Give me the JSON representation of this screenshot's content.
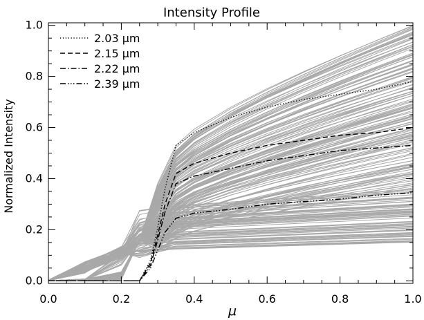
{
  "chart_data": {
    "type": "line",
    "title": "Intensity Profile",
    "xlabel": "μ",
    "ylabel": "Normalized Intensity",
    "xlim": [
      0.0,
      1.0
    ],
    "ylim": [
      -0.01,
      1.01
    ],
    "x_ticks": [
      "0.0",
      "0.2",
      "0.4",
      "0.6",
      "0.8",
      "1.0"
    ],
    "y_ticks": [
      "0.0",
      "0.2",
      "0.4",
      "0.6",
      "0.8",
      "1.0"
    ],
    "legend_position": "top-left",
    "background_series_color": "#a9a9a9",
    "background_series": {
      "count": 220,
      "description": "gray intensity profiles",
      "mu_knots": [
        0.0,
        0.1,
        0.2,
        0.25,
        0.3,
        0.35,
        0.4,
        0.5,
        0.6,
        0.7,
        0.8,
        0.9,
        1.0
      ],
      "shape_note": "upper family rises from near zero, jumps near mu 0.25-0.35 and saturates; lower family rises earlier near mu 0.15-0.25 and stays near 0.12-0.35"
    },
    "series": [
      {
        "name": "2.03 μm",
        "style": "dotted",
        "color": "#000000",
        "x": [
          0.0,
          0.1,
          0.2,
          0.25,
          0.28,
          0.3,
          0.32,
          0.35,
          0.4,
          0.5,
          0.6,
          0.7,
          0.8,
          0.9,
          1.0
        ],
        "values": [
          0.0,
          0.0,
          0.0,
          0.0,
          0.08,
          0.21,
          0.36,
          0.53,
          0.58,
          0.64,
          0.68,
          0.71,
          0.73,
          0.75,
          0.78
        ]
      },
      {
        "name": "2.15 μm",
        "style": "dashed",
        "color": "#000000",
        "x": [
          0.0,
          0.1,
          0.2,
          0.25,
          0.28,
          0.3,
          0.32,
          0.35,
          0.4,
          0.5,
          0.6,
          0.7,
          0.8,
          0.9,
          1.0
        ],
        "values": [
          0.0,
          0.0,
          0.0,
          0.0,
          0.07,
          0.18,
          0.3,
          0.42,
          0.46,
          0.5,
          0.53,
          0.55,
          0.57,
          0.58,
          0.6
        ]
      },
      {
        "name": "2.22 μm",
        "style": "dashdot",
        "color": "#000000",
        "x": [
          0.0,
          0.1,
          0.2,
          0.25,
          0.28,
          0.3,
          0.32,
          0.35,
          0.4,
          0.5,
          0.6,
          0.7,
          0.8,
          0.9,
          1.0
        ],
        "values": [
          0.0,
          0.0,
          0.0,
          0.0,
          0.06,
          0.16,
          0.27,
          0.38,
          0.41,
          0.44,
          0.47,
          0.49,
          0.51,
          0.52,
          0.53
        ]
      },
      {
        "name": "2.39 μm",
        "style": "dashdotdotdot",
        "color": "#000000",
        "x": [
          0.0,
          0.1,
          0.2,
          0.25,
          0.28,
          0.3,
          0.32,
          0.35,
          0.4,
          0.5,
          0.6,
          0.7,
          0.8,
          0.9,
          1.0
        ],
        "values": [
          0.0,
          0.0,
          0.0,
          0.0,
          0.05,
          0.12,
          0.19,
          0.245,
          0.265,
          0.28,
          0.3,
          0.31,
          0.32,
          0.335,
          0.345
        ]
      }
    ]
  }
}
